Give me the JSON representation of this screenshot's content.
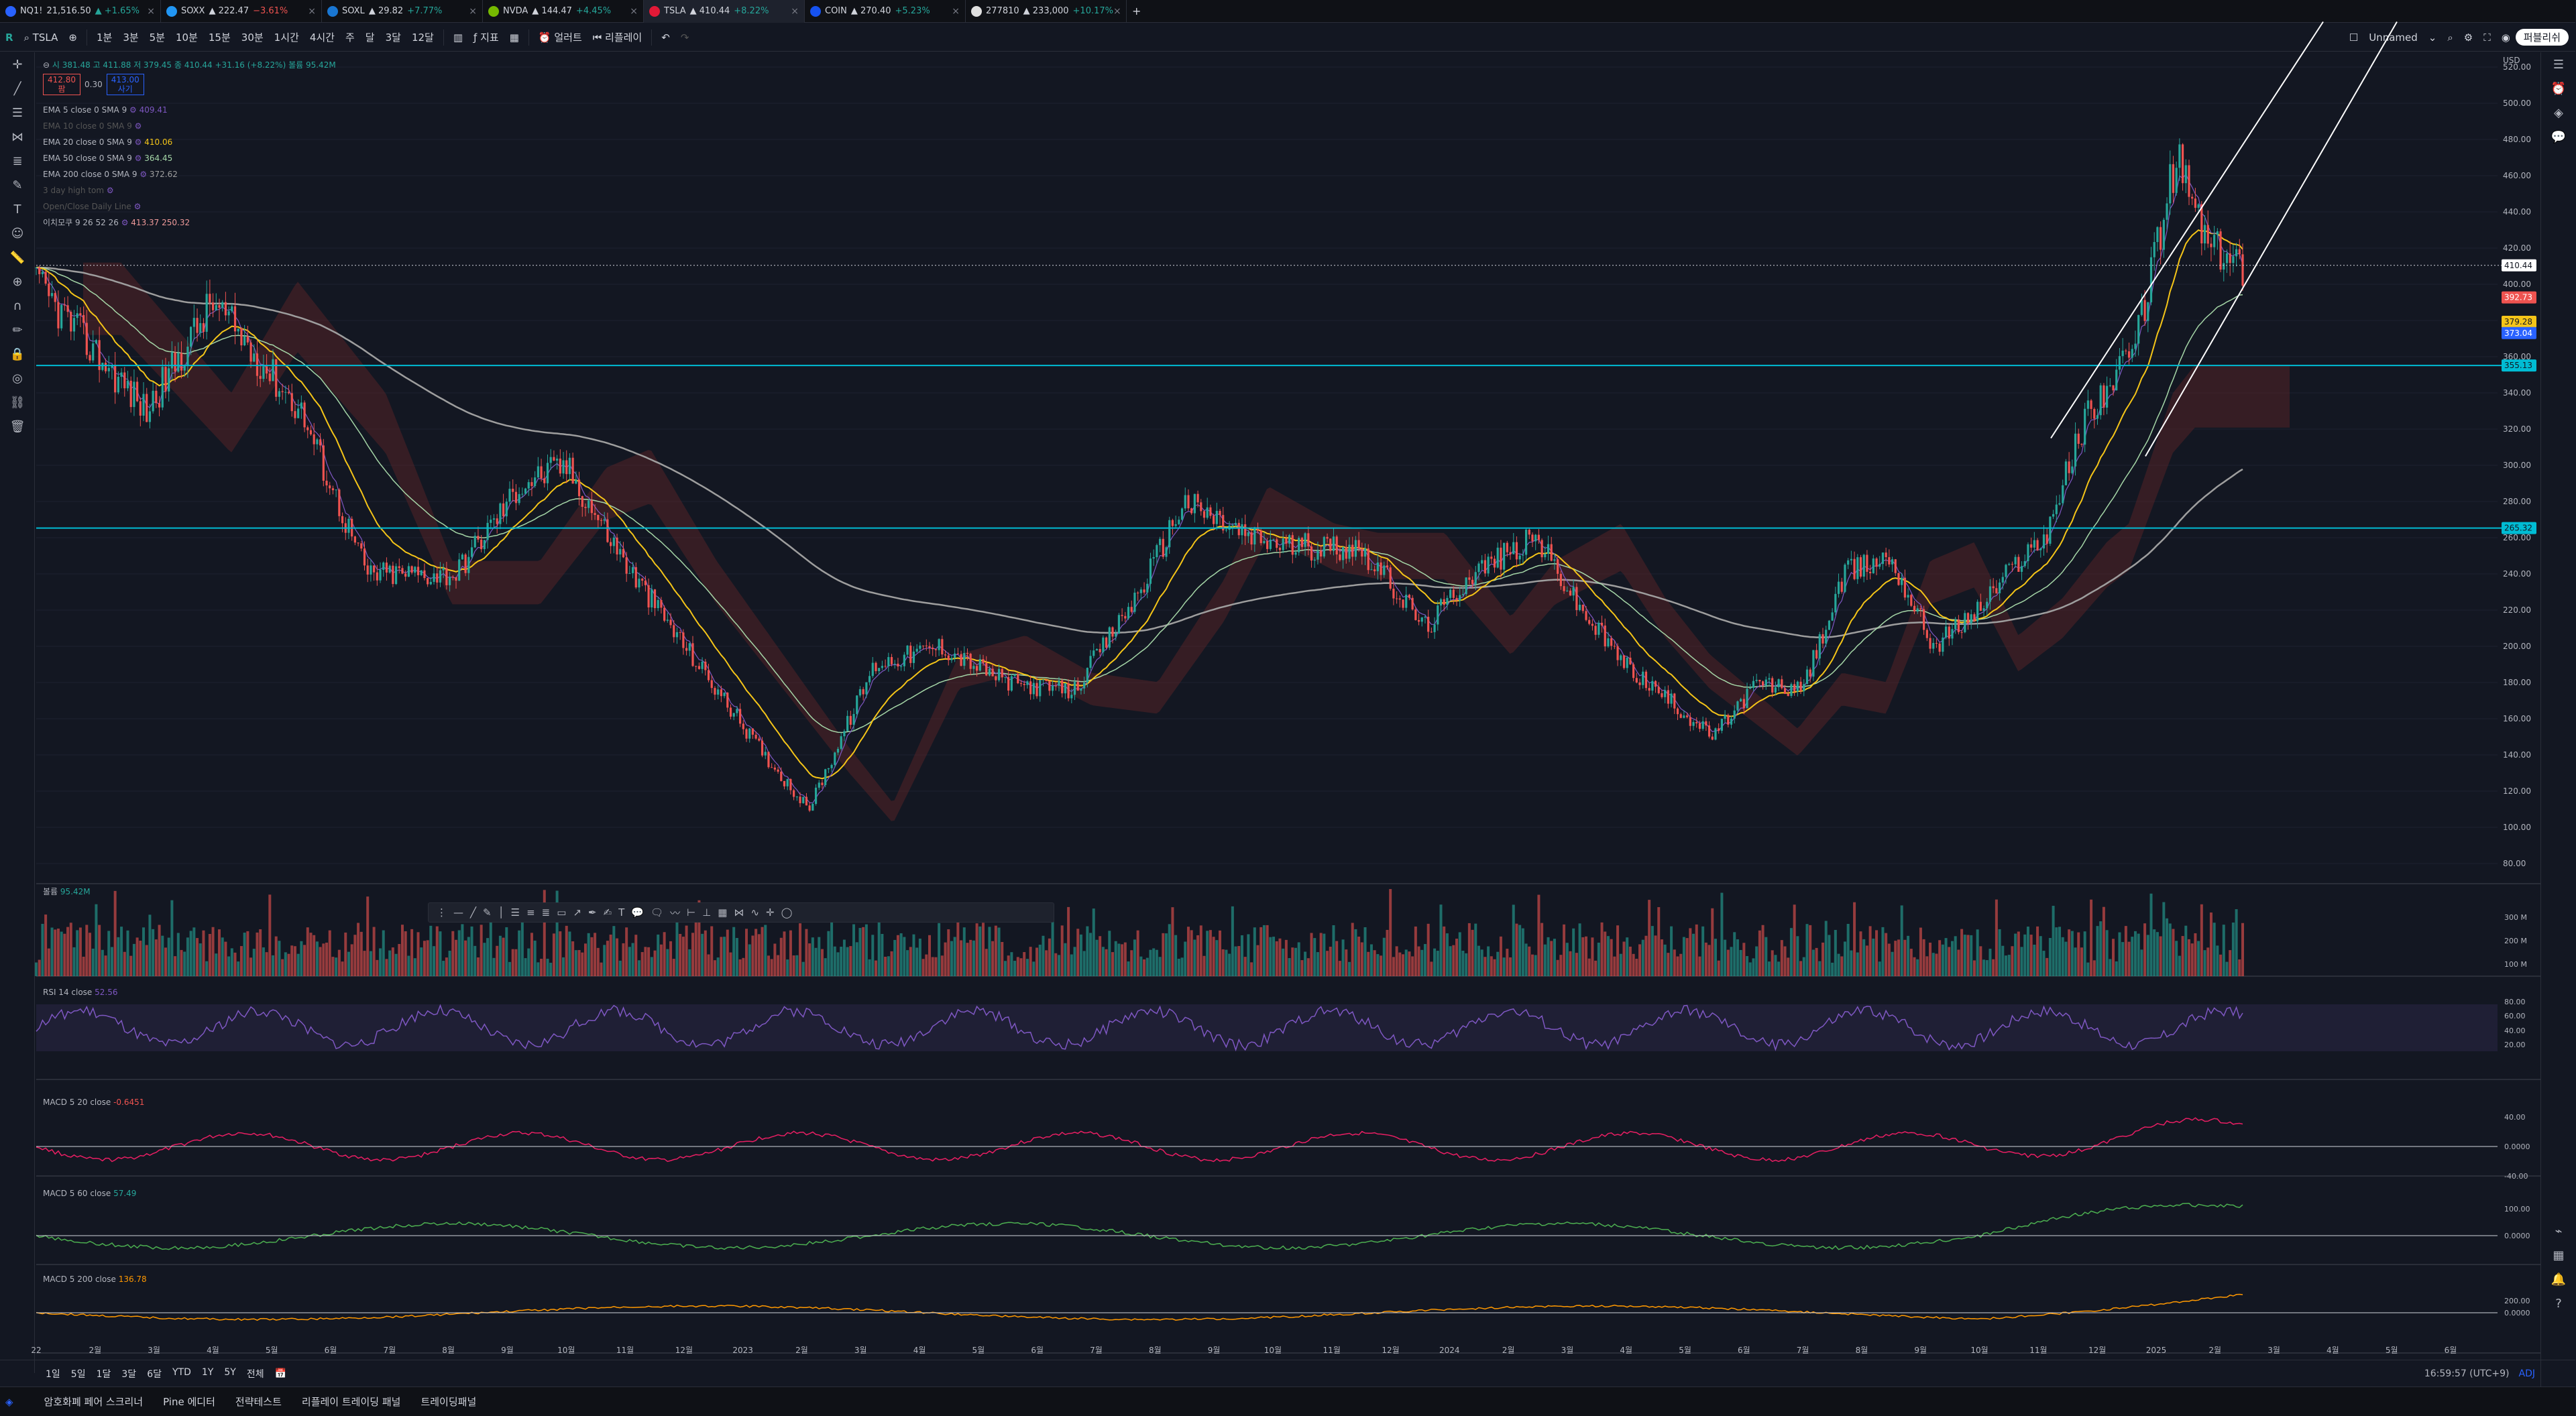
{
  "tabs": [
    {
      "symbol": "NQ1!",
      "price": "21,516.50",
      "change": "▲ +1.65%",
      "color": "#26a69a",
      "logo_color": "#2962ff"
    },
    {
      "symbol": "SOXX",
      "price": "▲ 222.47",
      "change": "−3.61%",
      "color": "#ef5350",
      "logo_color": "#2196f3"
    },
    {
      "symbol": "SOXL",
      "price": "▲ 29.82",
      "change": "+7.77%",
      "color": "#26a69a",
      "logo_color": "#1976d2"
    },
    {
      "symbol": "NVDA",
      "price": "▲ 144.47",
      "change": "+4.45%",
      "color": "#26a69a",
      "logo_color": "#76b900"
    },
    {
      "symbol": "TSLA",
      "price": "▲ 410.44",
      "change": "+8.22%",
      "color": "#26a69a",
      "logo_color": "#e31937"
    },
    {
      "symbol": "COIN",
      "price": "▲ 270.40",
      "change": "+5.23%",
      "color": "#26a69a",
      "logo_color": "#1652f0"
    },
    {
      "symbol": "277810",
      "price": "▲ 233,000",
      "change": "+10.17%",
      "color": "#26a69a",
      "logo_color": "#e0e0e0"
    }
  ],
  "toolbar": {
    "symbol": "TSLA",
    "intervals": [
      "1분",
      "3분",
      "5분",
      "10분",
      "15분",
      "30분",
      "1시간",
      "4시간",
      "주",
      "달",
      "3달",
      "12달"
    ],
    "indicators": "지표",
    "alert": "얼러트",
    "replay": "리플레이",
    "layout_name": "Unnamed",
    "publish": "퍼블리쉬"
  },
  "legend": {
    "ohlc": "시 381.48  고 411.88  저 379.45  종 410.44 +31.16 (+8.22%)  볼륨 95.42M",
    "bid": "412.80",
    "spread": "0.30",
    "ask": "413.00",
    "bid_label": "팜",
    "ask_label": "사기",
    "indicators": [
      {
        "label": "EMA 5 close 0 SMA 9",
        "value": "409.41",
        "color": "#7e57c2"
      },
      {
        "label": "EMA 10 close 0 SMA 9",
        "value": "",
        "color": "#555"
      },
      {
        "label": "EMA 20 close 0 SMA 9",
        "value": "410.06",
        "color": "#f5c518"
      },
      {
        "label": "EMA 50 close 0 SMA 9",
        "value": "364.45",
        "color": "#a5d6a7"
      },
      {
        "label": "EMA 200 close 0 SMA 9",
        "value": "372.62",
        "color": "#9e9e9e"
      },
      {
        "label": "3 day high tom",
        "value": "",
        "color": "#555"
      },
      {
        "label": "Open/Close Daily Line",
        "value": "",
        "color": "#555"
      },
      {
        "label": "이치모쿠 9 26 52 26",
        "value": "413.37  250.32",
        "color": "#ef9a9a"
      }
    ]
  },
  "price_axis": {
    "currency": "USD",
    "ticks": [
      "520.00",
      "500.00",
      "480.00",
      "460.00",
      "440.00",
      "420.00",
      "400.00",
      "380.00",
      "360.00",
      "340.00",
      "320.00",
      "300.00",
      "280.00",
      "260.00",
      "240.00",
      "220.00",
      "200.00",
      "180.00",
      "160.00",
      "140.00",
      "120.00",
      "100.00",
      "80.00"
    ],
    "tags": [
      {
        "text": "410.44",
        "bg": "#ffffff",
        "fg": "#131722",
        "price": 410.44
      },
      {
        "text": "392.73",
        "bg": "#ef5350",
        "fg": "#ffffff",
        "price": 392.73
      },
      {
        "text": "379.28",
        "bg": "#f5c518",
        "fg": "#131722",
        "price": 379.28
      },
      {
        "text": "373.04",
        "bg": "#2962ff",
        "fg": "#ffffff",
        "price": 373.04
      },
      {
        "text": "355.13",
        "bg": "#00bcd4",
        "fg": "#131722",
        "price": 355.13
      },
      {
        "text": "265.32",
        "bg": "#00bcd4",
        "fg": "#131722",
        "price": 265.32
      }
    ]
  },
  "time_axis": [
    "22",
    "2월",
    "3월",
    "4월",
    "5월",
    "6월",
    "7월",
    "8월",
    "9월",
    "10월",
    "11월",
    "12월",
    "2023",
    "2월",
    "3월",
    "4월",
    "5월",
    "6월",
    "7월",
    "8월",
    "9월",
    "10월",
    "11월",
    "12월",
    "2024",
    "2월",
    "3월",
    "4월",
    "5월",
    "6월",
    "7월",
    "8월",
    "9월",
    "10월",
    "11월",
    "12월",
    "2025",
    "2월",
    "3월",
    "4월",
    "5월",
    "6월"
  ],
  "panels": {
    "volume": {
      "title": "볼륨",
      "value": "95.42M",
      "ticks": [
        "300 M",
        "200 M",
        "100 M"
      ]
    },
    "rsi": {
      "title": "RSI 14 close",
      "value": "52.56",
      "ticks": [
        "80.00",
        "60.00",
        "40.00",
        "20.00"
      ]
    },
    "macd1": {
      "title": "MACD 5 20 close",
      "value": "-0.6451",
      "ticks": [
        "40.00",
        "0.0000",
        "-40.00"
      ]
    },
    "macd2": {
      "title": "MACD 5 60 close",
      "value": "57.49",
      "ticks": [
        "100.00",
        "0.0000"
      ]
    },
    "macd3": {
      "title": "MACD 5 200 close",
      "value": "136.78",
      "ticks": [
        "200.00",
        "0.0000"
      ]
    }
  },
  "bottom": {
    "ranges": [
      "1일",
      "5일",
      "1달",
      "3달",
      "6달",
      "YTD",
      "1Y",
      "5Y",
      "전체"
    ],
    "clock": "16:59:57 (UTC+9)",
    "adj": "ADJ"
  },
  "footer": {
    "tabs": [
      "암호화폐 페어 스크리너",
      "Pine 에디터",
      "전략테스트",
      "리플레이 트레이딩 패널",
      "트레이딩패널"
    ]
  },
  "colors": {
    "up": "#26a69a",
    "down": "#ef5350",
    "ema5": "#7e57c2",
    "ema20": "#f5c518",
    "ema50": "#a5d6a7",
    "ema200": "#9e9e9e",
    "cyan": "#00bcd4"
  }
}
